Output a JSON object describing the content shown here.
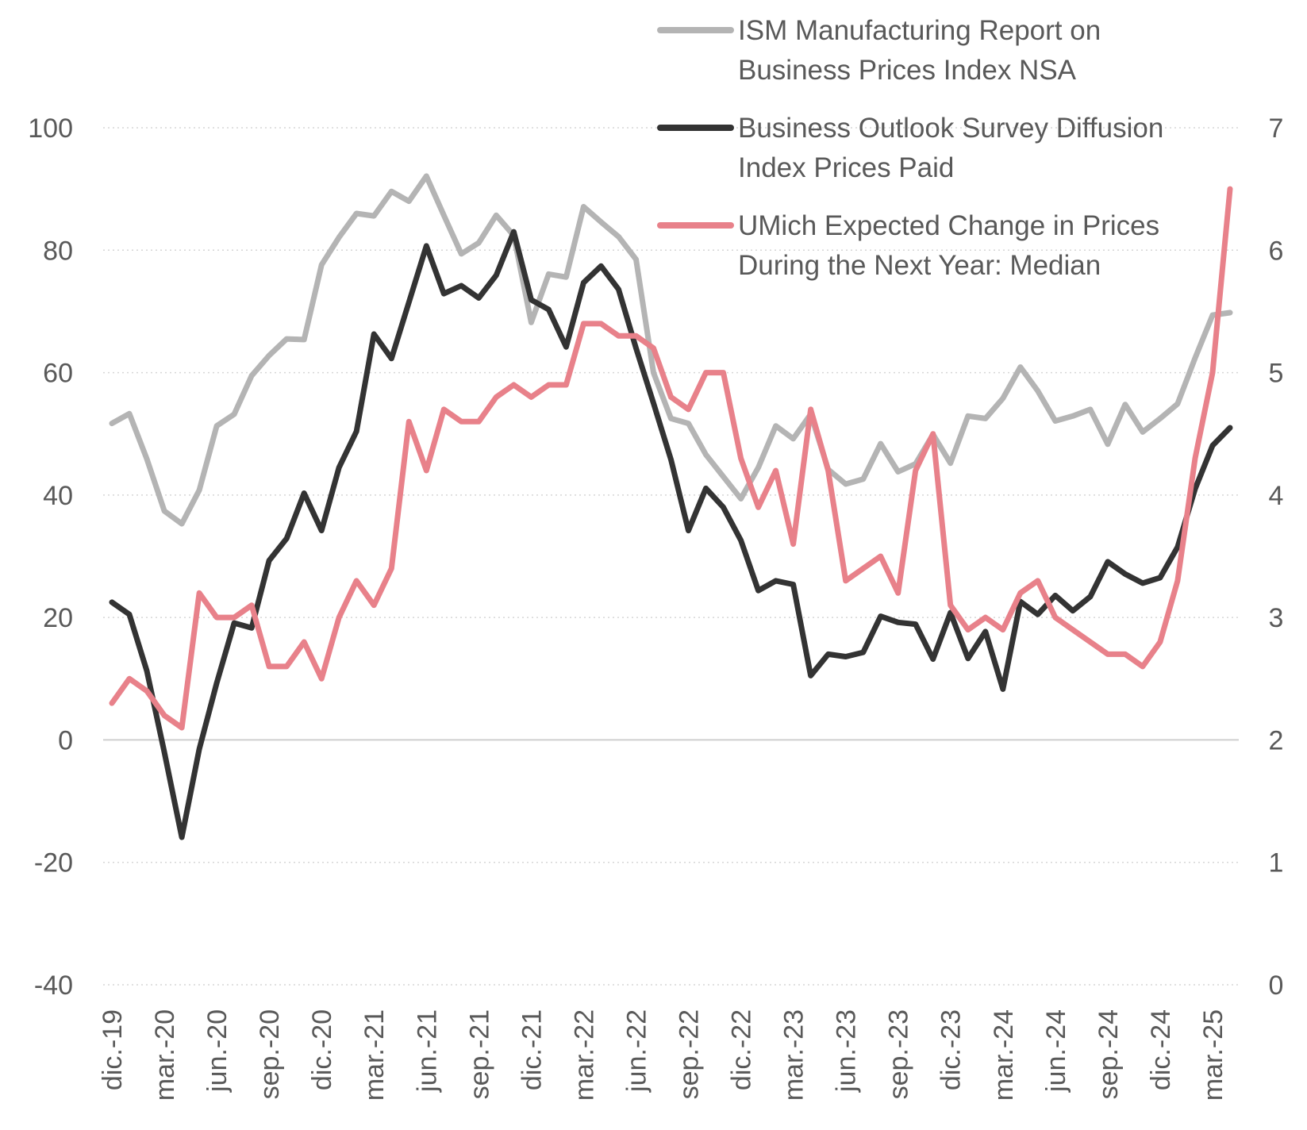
{
  "chart_data": {
    "type": "line",
    "categories": [
      "dic.-19",
      "ene.-20",
      "feb.-20",
      "mar.-20",
      "abr.-20",
      "may.-20",
      "jun.-20",
      "jul.-20",
      "ago.-20",
      "sep.-20",
      "oct.-20",
      "nov.-20",
      "dic.-20",
      "ene.-21",
      "feb.-21",
      "mar.-21",
      "abr.-21",
      "may.-21",
      "jun.-21",
      "jul.-21",
      "ago.-21",
      "sep.-21",
      "oct.-21",
      "nov.-21",
      "dic.-21",
      "ene.-22",
      "feb.-22",
      "mar.-22",
      "abr.-22",
      "may.-22",
      "jun.-22",
      "jul.-22",
      "ago.-22",
      "sep.-22",
      "oct.-22",
      "nov.-22",
      "dic.-22",
      "ene.-23",
      "feb.-23",
      "mar.-23",
      "abr.-23",
      "may.-23",
      "jun.-23",
      "jul.-23",
      "ago.-23",
      "sep.-23",
      "oct.-23",
      "nov.-23",
      "dic.-23",
      "ene.-24",
      "feb.-24",
      "mar.-24",
      "abr.-24",
      "may.-24",
      "jun.-24",
      "jul.-24",
      "ago.-24",
      "sep.-24",
      "oct.-24",
      "nov.-24",
      "dic.-24",
      "ene.-25",
      "feb.-25",
      "mar.-25",
      "abr.-25"
    ],
    "x_tick_labels": [
      "dic.-19",
      "mar.-20",
      "jun.-20",
      "sep.-20",
      "dic.-20",
      "mar.-21",
      "jun.-21",
      "sep.-21",
      "dic.-21",
      "mar.-22",
      "jun.-22",
      "sep.-22",
      "dic.-22",
      "mar.-23",
      "jun.-23",
      "sep.-23",
      "dic.-23",
      "mar.-24",
      "jun.-24",
      "sep.-24",
      "dic.-24",
      "mar.-25"
    ],
    "y_left": {
      "ticks": [
        "100",
        "80",
        "60",
        "40",
        "20",
        "0",
        "-20",
        "-40"
      ],
      "range": [
        -40,
        100
      ]
    },
    "y_right": {
      "ticks": [
        "7",
        "6",
        "5",
        "4",
        "3",
        "2",
        "1",
        "0"
      ],
      "range": [
        0,
        7
      ]
    },
    "grid": true,
    "legend_position": "top-right",
    "series": [
      {
        "name": "ISM Manufacturing Report on Business Prices Index NSA",
        "legend_lines": [
          "ISM Manufacturing Report on",
          "Business Prices Index NSA"
        ],
        "axis": "left",
        "color": "#b4b4b4",
        "values": [
          51.7,
          53.3,
          45.9,
          37.4,
          35.3,
          40.8,
          51.3,
          53.2,
          59.5,
          62.8,
          65.5,
          65.4,
          77.6,
          82.1,
          86.0,
          85.6,
          89.6,
          88.0,
          92.1,
          85.7,
          79.4,
          81.2,
          85.7,
          82.4,
          68.2,
          76.1,
          75.6,
          87.1,
          84.6,
          82.2,
          78.5,
          60.0,
          52.5,
          51.7,
          46.6,
          43.0,
          39.4,
          44.5,
          51.3,
          49.2,
          53.2,
          44.2,
          41.8,
          42.6,
          48.4,
          43.8,
          45.1,
          49.9,
          45.2,
          52.9,
          52.5,
          55.8,
          60.9,
          57.0,
          52.1,
          52.9,
          54.0,
          48.3,
          54.8,
          50.3,
          52.5,
          54.9,
          62.4,
          69.4,
          69.8
        ]
      },
      {
        "name": "Business Outlook Survey Diffusion Index Prices Paid",
        "legend_lines": [
          "Business Outlook Survey Diffusion",
          "Index Prices Paid"
        ],
        "axis": "left",
        "color": "#333333",
        "values": [
          22.5,
          20.5,
          11.3,
          -2.0,
          -15.9,
          -1.5,
          9.3,
          19.1,
          18.3,
          29.3,
          32.9,
          40.3,
          34.2,
          44.5,
          50.4,
          66.3,
          62.3,
          71.5,
          80.7,
          72.9,
          74.2,
          72.2,
          75.9,
          83.0,
          71.9,
          70.3,
          64.2,
          74.7,
          77.4,
          73.6,
          64.0,
          55.0,
          45.8,
          34.2,
          41.1,
          38.0,
          32.6,
          24.4,
          26.0,
          25.4,
          10.5,
          14.0,
          13.6,
          14.3,
          20.2,
          19.2,
          18.9,
          13.2,
          20.8,
          13.3,
          17.7,
          8.3,
          22.6,
          20.5,
          23.6,
          21.1,
          23.4,
          29.1,
          27.1,
          25.6,
          26.5,
          31.5,
          41.0,
          48.1,
          51.0
        ]
      },
      {
        "name": "UMich Expected Change in Prices During the Next Year: Median",
        "legend_lines": [
          "UMich Expected Change in Prices",
          "During the Next Year: Median"
        ],
        "axis": "right",
        "color": "#e8818a",
        "values": [
          2.3,
          2.5,
          2.4,
          2.2,
          2.1,
          3.2,
          3.0,
          3.0,
          3.1,
          2.6,
          2.6,
          2.8,
          2.5,
          3.0,
          3.3,
          3.1,
          3.4,
          4.6,
          4.2,
          4.7,
          4.6,
          4.6,
          4.8,
          4.9,
          4.8,
          4.9,
          4.9,
          5.4,
          5.4,
          5.3,
          5.3,
          5.2,
          4.8,
          4.7,
          5.0,
          5.0,
          4.3,
          3.9,
          4.2,
          3.6,
          4.7,
          4.2,
          3.3,
          3.4,
          3.5,
          3.2,
          4.2,
          4.5,
          3.1,
          2.9,
          3.0,
          2.9,
          3.2,
          3.3,
          3.0,
          2.9,
          2.8,
          2.7,
          2.7,
          2.6,
          2.8,
          3.3,
          4.3,
          5.0,
          6.5
        ]
      }
    ]
  }
}
